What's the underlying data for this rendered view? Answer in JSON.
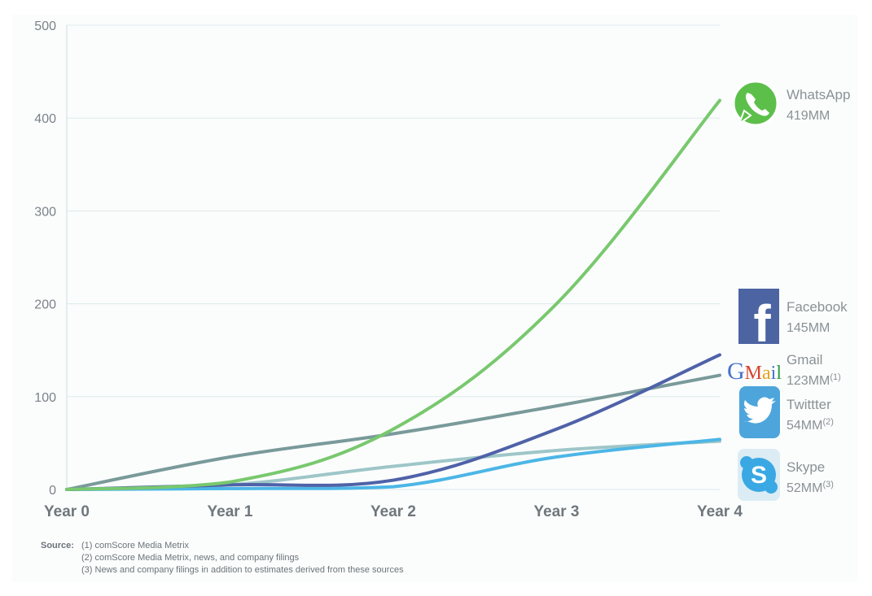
{
  "chart_data": {
    "type": "line",
    "x": [
      "Year 0",
      "Year 1",
      "Year 2",
      "Year 3",
      "Year 4"
    ],
    "ylim": [
      0,
      500
    ],
    "yticks": [
      0,
      100,
      200,
      300,
      400,
      500
    ],
    "grid": true,
    "series": [
      {
        "name": "Gmail",
        "value_label": "123MM",
        "footnote": "(1)",
        "color": "#7a9a9a",
        "icon": "gmail-logo-icon",
        "values": [
          0,
          35,
          60,
          90,
          123
        ]
      },
      {
        "name": "Skype",
        "value_label": "52MM",
        "footnote": "(3)",
        "color": "#9ec6c8",
        "icon": "skype-logo-icon",
        "values": [
          0,
          5,
          25,
          42,
          52
        ]
      },
      {
        "name": "Twittter",
        "value_label": "54MM",
        "footnote": "(2)",
        "color": "#4cb6e6",
        "icon": "twitter-logo-icon",
        "values": [
          0,
          1,
          3,
          35,
          54
        ]
      },
      {
        "name": "Facebook",
        "value_label": "145MM",
        "footnote": "",
        "color": "#4f62a8",
        "icon": "facebook-logo-icon",
        "values": [
          0,
          5,
          10,
          65,
          145
        ]
      },
      {
        "name": "WhatsApp",
        "value_label": "419MM",
        "footnote": "",
        "color": "#79c86e",
        "icon": "whatsapp-logo-icon",
        "values": [
          0,
          8,
          65,
          200,
          419
        ]
      }
    ]
  },
  "logos": {
    "facebook_letter": "f",
    "gmail_wordmark": "GMail"
  },
  "footnotes": {
    "source_label": "Source:",
    "notes": [
      "(1) comScore Media Metrix",
      "(2) comScore Media Metrix, news, and company filings",
      "(3) News and company filings in addition to estimates derived from these sources"
    ]
  }
}
